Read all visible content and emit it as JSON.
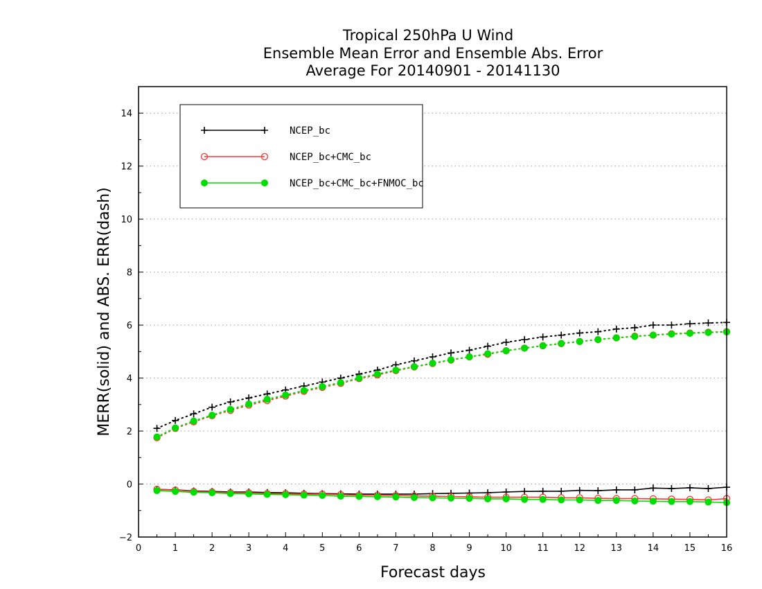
{
  "chart_data": {
    "type": "line",
    "title_lines": [
      "Tropical 250hPa U Wind",
      "Ensemble Mean Error and Ensemble Abs. Error",
      "Average For 20140901 - 20141130"
    ],
    "xlabel": "Forecast days",
    "ylabel": "MERR(solid) and ABS. ERR(dash)",
    "xlim": [
      0,
      16
    ],
    "ylim": [
      -2,
      15
    ],
    "xticks": [
      0,
      1,
      2,
      3,
      4,
      5,
      6,
      7,
      8,
      9,
      10,
      11,
      12,
      13,
      14,
      15,
      16
    ],
    "yticks": [
      -2,
      0,
      2,
      4,
      6,
      8,
      10,
      12,
      14
    ],
    "grid": "horizontal dotted",
    "legend_position": "top-left",
    "x": [
      0.5,
      1,
      1.5,
      2,
      2.5,
      3,
      3.5,
      4,
      4.5,
      5,
      5.5,
      6,
      6.5,
      7,
      7.5,
      8,
      8.5,
      9,
      9.5,
      10,
      10.5,
      11,
      11.5,
      12,
      12.5,
      13,
      13.5,
      14,
      14.5,
      15,
      15.5,
      16
    ],
    "series": [
      {
        "name": "NCEP_bc",
        "color": "#000000",
        "marker": "plus",
        "mean_error": [
          -0.2,
          -0.22,
          -0.26,
          -0.28,
          -0.3,
          -0.3,
          -0.32,
          -0.33,
          -0.35,
          -0.36,
          -0.37,
          -0.38,
          -0.38,
          -0.38,
          -0.38,
          -0.36,
          -0.35,
          -0.34,
          -0.33,
          -0.3,
          -0.28,
          -0.27,
          -0.27,
          -0.24,
          -0.25,
          -0.22,
          -0.22,
          -0.15,
          -0.17,
          -0.14,
          -0.17,
          -0.12
        ],
        "abs_error": [
          2.1,
          2.4,
          2.65,
          2.9,
          3.1,
          3.25,
          3.4,
          3.55,
          3.7,
          3.85,
          4.0,
          4.15,
          4.3,
          4.5,
          4.65,
          4.8,
          4.95,
          5.05,
          5.2,
          5.35,
          5.45,
          5.55,
          5.62,
          5.7,
          5.75,
          5.85,
          5.9,
          6.0,
          6.0,
          6.05,
          6.08,
          6.1
        ]
      },
      {
        "name": "NCEP_bc+CMC_bc",
        "color": "#ff3333",
        "marker": "open-circle",
        "mean_error": [
          -0.2,
          -0.23,
          -0.28,
          -0.3,
          -0.33,
          -0.33,
          -0.36,
          -0.36,
          -0.38,
          -0.38,
          -0.4,
          -0.42,
          -0.42,
          -0.43,
          -0.45,
          -0.46,
          -0.47,
          -0.48,
          -0.5,
          -0.5,
          -0.5,
          -0.5,
          -0.52,
          -0.52,
          -0.54,
          -0.55,
          -0.55,
          -0.56,
          -0.57,
          -0.58,
          -0.6,
          -0.55
        ],
        "abs_error": [
          1.75,
          2.1,
          2.35,
          2.58,
          2.78,
          2.98,
          3.15,
          3.32,
          3.5,
          3.65,
          3.8,
          3.98,
          4.12,
          4.28,
          4.42,
          4.55,
          4.68,
          4.8,
          4.9,
          5.03,
          5.13,
          5.22,
          5.3,
          5.38,
          5.45,
          5.52,
          5.58,
          5.62,
          5.67,
          5.7,
          5.73,
          5.75
        ]
      },
      {
        "name": "NCEP_bc+CMC_bc+FNMOC_bc",
        "color": "#00dd00",
        "marker": "filled-circle",
        "mean_error": [
          -0.25,
          -0.28,
          -0.31,
          -0.33,
          -0.36,
          -0.37,
          -0.39,
          -0.4,
          -0.42,
          -0.43,
          -0.46,
          -0.47,
          -0.48,
          -0.49,
          -0.51,
          -0.52,
          -0.53,
          -0.54,
          -0.56,
          -0.56,
          -0.58,
          -0.58,
          -0.6,
          -0.6,
          -0.62,
          -0.62,
          -0.64,
          -0.65,
          -0.66,
          -0.66,
          -0.68,
          -0.7
        ],
        "abs_error": [
          1.78,
          2.12,
          2.38,
          2.6,
          2.82,
          3.02,
          3.2,
          3.36,
          3.53,
          3.68,
          3.83,
          4.0,
          4.15,
          4.3,
          4.43,
          4.56,
          4.69,
          4.8,
          4.92,
          5.03,
          5.13,
          5.22,
          5.31,
          5.38,
          5.45,
          5.52,
          5.57,
          5.62,
          5.66,
          5.69,
          5.72,
          5.74
        ]
      }
    ]
  }
}
